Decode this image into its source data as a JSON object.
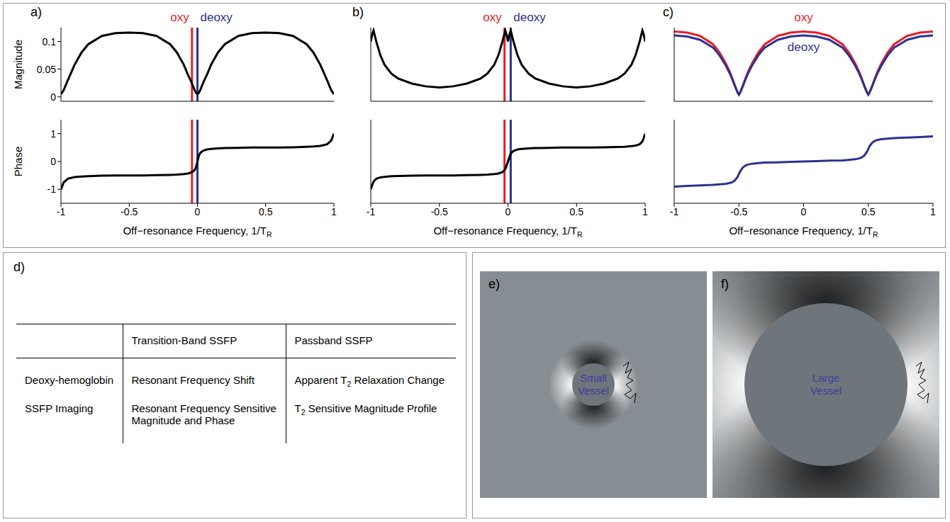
{
  "chart_data": [
    {
      "type": "line",
      "panel": "a)",
      "xlabel": "Off−resonance Frequency, 1/TR",
      "xlim": [
        -1,
        1
      ],
      "xticks": [
        -1,
        -0.5,
        0,
        0.5,
        1
      ],
      "annotations": [
        {
          "text": "oxy",
          "x": -0.04,
          "color": "#e41e26"
        },
        {
          "text": "deoxy",
          "x": 0,
          "color": "#2e3192"
        }
      ],
      "x": [
        -1,
        -0.98,
        -0.95,
        -0.9,
        -0.85,
        -0.8,
        -0.7,
        -0.6,
        -0.5,
        -0.4,
        -0.3,
        -0.2,
        -0.15,
        -0.1,
        -0.07,
        -0.05,
        -0.03,
        -0.02,
        -0.01,
        0,
        0.01,
        0.02,
        0.03,
        0.05,
        0.07,
        0.1,
        0.15,
        0.2,
        0.3,
        0.4,
        0.5,
        0.6,
        0.7,
        0.8,
        0.85,
        0.9,
        0.95,
        0.98,
        1
      ],
      "plots": [
        {
          "ylabel": "Magnitude",
          "tick_labels": "y",
          "ylim": [
            -0.008,
            0.125
          ],
          "yticks": [
            0,
            0.05,
            0.1
          ],
          "series": [
            {
              "color": "#000000",
              "values": [
                0.005,
                0.012,
                0.03,
                0.058,
                0.08,
                0.095,
                0.11,
                0.115,
                0.116,
                0.115,
                0.11,
                0.095,
                0.08,
                0.058,
                0.04,
                0.03,
                0.018,
                0.012,
                0.007,
                0.005,
                0.007,
                0.012,
                0.018,
                0.03,
                0.04,
                0.058,
                0.08,
                0.095,
                0.11,
                0.115,
                0.116,
                0.115,
                0.11,
                0.095,
                0.08,
                0.058,
                0.03,
                0.012,
                0.005
              ]
            }
          ]
        },
        {
          "ylabel": "Phase",
          "ylim": [
            -1.5,
            1.5
          ],
          "yticks": [
            -1,
            0,
            1
          ],
          "series": [
            {
              "color": "#000000",
              "values": [
                -1,
                -0.75,
                -0.62,
                -0.56,
                -0.54,
                -0.53,
                -0.51,
                -0.5,
                -0.5,
                -0.5,
                -0.49,
                -0.48,
                -0.47,
                -0.45,
                -0.43,
                -0.4,
                -0.35,
                -0.3,
                -0.2,
                0,
                0.2,
                0.3,
                0.35,
                0.4,
                0.43,
                0.45,
                0.47,
                0.48,
                0.49,
                0.5,
                0.5,
                0.5,
                0.51,
                0.53,
                0.54,
                0.56,
                0.62,
                0.75,
                1
              ]
            }
          ]
        }
      ]
    },
    {
      "type": "line",
      "panel": "b)",
      "xlabel": "Off−resonance Frequency, 1/TR",
      "xlim": [
        -1,
        1
      ],
      "xticks": [
        -1,
        -0.5,
        0,
        0.5,
        1
      ],
      "annotations": [
        {
          "text": "oxy",
          "x": -0.025,
          "color": "#e41e26"
        },
        {
          "text": "deoxy",
          "x": 0.02,
          "color": "#2e3192"
        }
      ],
      "x": [
        -1,
        -0.99,
        -0.98,
        -0.96,
        -0.93,
        -0.9,
        -0.85,
        -0.8,
        -0.7,
        -0.6,
        -0.5,
        -0.4,
        -0.3,
        -0.2,
        -0.15,
        -0.1,
        -0.07,
        -0.04,
        -0.02,
        -0.01,
        0,
        0.01,
        0.02,
        0.04,
        0.07,
        0.1,
        0.15,
        0.2,
        0.3,
        0.4,
        0.5,
        0.6,
        0.7,
        0.8,
        0.85,
        0.9,
        0.93,
        0.96,
        0.98,
        0.99,
        1
      ],
      "plots": [
        {
          "tick_labels": false,
          "ylim": [
            -0.008,
            0.125
          ],
          "yticks": [
            0,
            0.05,
            0.1
          ],
          "series": [
            {
              "color": "#000000",
              "values": [
                0.1,
                0.112,
                0.12,
                0.1,
                0.075,
                0.058,
                0.042,
                0.033,
                0.024,
                0.019,
                0.017,
                0.019,
                0.024,
                0.033,
                0.042,
                0.058,
                0.075,
                0.1,
                0.12,
                0.112,
                0.1,
                0.112,
                0.12,
                0.1,
                0.075,
                0.058,
                0.042,
                0.033,
                0.024,
                0.019,
                0.017,
                0.019,
                0.024,
                0.033,
                0.042,
                0.058,
                0.075,
                0.1,
                0.12,
                0.112,
                0.1
              ]
            }
          ]
        },
        {
          "tick_labels": "x",
          "ylim": [
            -1.5,
            1.5
          ],
          "yticks": [
            -1,
            0,
            1
          ],
          "series": [
            {
              "color": "#000000",
              "values": [
                -1,
                -0.85,
                -0.72,
                -0.62,
                -0.57,
                -0.55,
                -0.53,
                -0.52,
                -0.51,
                -0.5,
                -0.5,
                -0.5,
                -0.49,
                -0.48,
                -0.47,
                -0.45,
                -0.43,
                -0.38,
                -0.28,
                -0.15,
                0,
                0.15,
                0.28,
                0.38,
                0.43,
                0.45,
                0.47,
                0.48,
                0.49,
                0.5,
                0.5,
                0.5,
                0.51,
                0.52,
                0.53,
                0.55,
                0.57,
                0.62,
                0.72,
                0.85,
                1
              ]
            }
          ]
        }
      ]
    },
    {
      "type": "line",
      "panel": "c)",
      "xlabel": "Off−resonance Frequency, 1/TR",
      "xlim": [
        -1,
        1
      ],
      "xticks": [
        -1,
        -0.5,
        0,
        0.5,
        1
      ],
      "x": [
        -1,
        -0.9,
        -0.8,
        -0.7,
        -0.65,
        -0.6,
        -0.57,
        -0.55,
        -0.53,
        -0.51,
        -0.5,
        -0.49,
        -0.47,
        -0.45,
        -0.43,
        -0.4,
        -0.35,
        -0.3,
        -0.2,
        -0.1,
        0,
        0.1,
        0.2,
        0.3,
        0.35,
        0.4,
        0.43,
        0.45,
        0.47,
        0.49,
        0.5,
        0.51,
        0.53,
        0.55,
        0.57,
        0.6,
        0.65,
        0.7,
        0.8,
        0.9,
        1
      ],
      "plots": [
        {
          "tick_labels": false,
          "ylim": [
            -0.008,
            0.125
          ],
          "yticks": [
            0,
            0.05,
            0.1
          ],
          "series": [
            {
              "name": "oxy",
              "color": "#e41e26",
              "values": [
                0.118,
                0.116,
                0.11,
                0.095,
                0.08,
                0.06,
                0.045,
                0.033,
                0.02,
                0.008,
                0.004,
                0.008,
                0.02,
                0.033,
                0.045,
                0.06,
                0.08,
                0.095,
                0.11,
                0.116,
                0.118,
                0.116,
                0.11,
                0.095,
                0.08,
                0.06,
                0.045,
                0.033,
                0.02,
                0.008,
                0.004,
                0.008,
                0.02,
                0.033,
                0.045,
                0.06,
                0.08,
                0.095,
                0.11,
                0.116,
                0.118
              ]
            },
            {
              "name": "deoxy",
              "color": "#2e3192",
              "values": [
                0.111,
                0.109,
                0.103,
                0.089,
                0.075,
                0.056,
                0.042,
                0.031,
                0.019,
                0.008,
                0.004,
                0.008,
                0.019,
                0.031,
                0.042,
                0.056,
                0.075,
                0.089,
                0.103,
                0.109,
                0.111,
                0.109,
                0.103,
                0.089,
                0.075,
                0.056,
                0.042,
                0.031,
                0.019,
                0.008,
                0.004,
                0.008,
                0.019,
                0.031,
                0.042,
                0.056,
                0.075,
                0.089,
                0.103,
                0.109,
                0.111
              ]
            }
          ]
        },
        {
          "tick_labels": "x",
          "ylim": [
            -1.5,
            1.5
          ],
          "yticks": [
            -1,
            0,
            1
          ],
          "series": [
            {
              "color": "#2e3192",
              "values": [
                -0.9,
                -0.88,
                -0.86,
                -0.84,
                -0.82,
                -0.8,
                -0.77,
                -0.74,
                -0.67,
                -0.55,
                -0.45,
                -0.35,
                -0.22,
                -0.15,
                -0.11,
                -0.08,
                -0.06,
                -0.04,
                -0.03,
                -0.01,
                0,
                0.01,
                0.03,
                0.04,
                0.06,
                0.08,
                0.11,
                0.15,
                0.22,
                0.35,
                0.45,
                0.55,
                0.67,
                0.74,
                0.77,
                0.8,
                0.82,
                0.84,
                0.86,
                0.88,
                0.9
              ]
            }
          ]
        }
      ]
    }
  ],
  "table": {
    "panel": "d)",
    "header": [
      "",
      "Transition-Band SSFP",
      "Passband SSFP"
    ],
    "rows": [
      [
        "Deoxy-hemoglobin",
        "Resonant Frequency Shift",
        "Apparent T2 Relaxation Change"
      ],
      [
        "SSFP Imaging",
        "Resonant Frequency Sensitive Magnitude and Phase",
        "T2 Sensitive Magnitude Profile"
      ]
    ]
  },
  "diagrams": [
    {
      "panel": "e)",
      "label": "Small Vessel"
    },
    {
      "panel": "f)",
      "label": "Large Vessel"
    }
  ]
}
